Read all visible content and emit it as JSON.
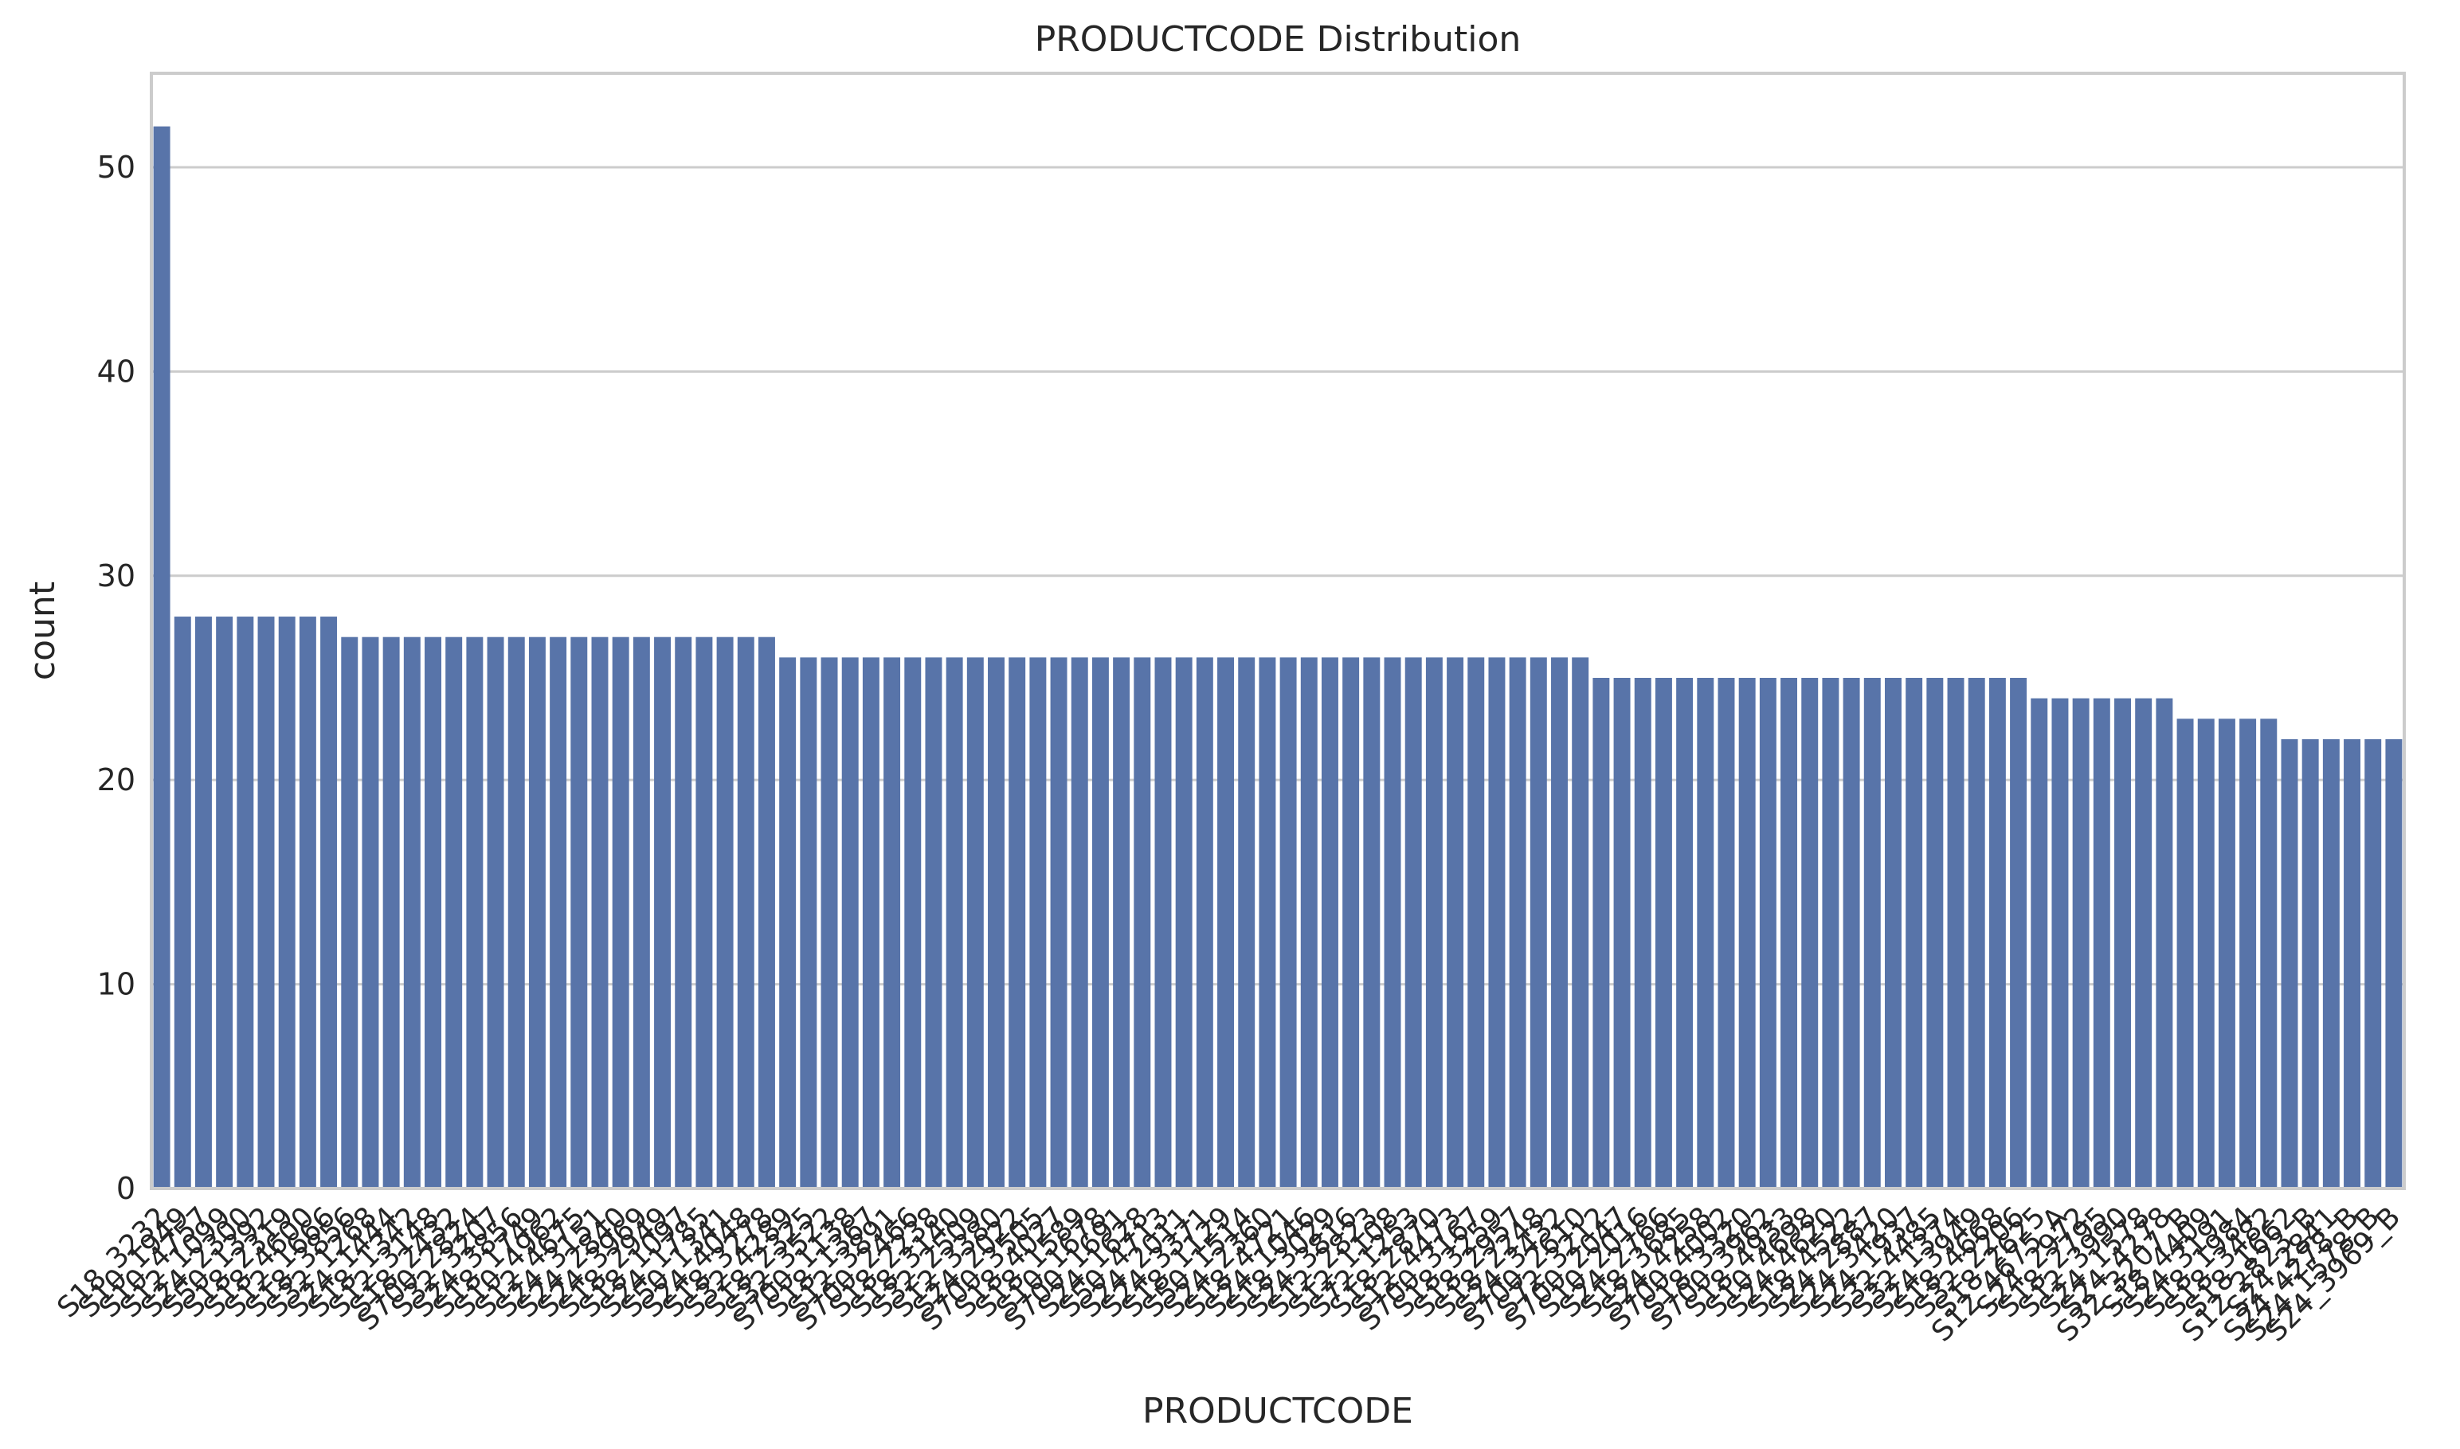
{
  "chart_data": {
    "type": "bar",
    "title": "PRODUCTCODE Distribution",
    "xlabel": "PRODUCTCODE",
    "ylabel": "count",
    "ylim": [
      0,
      54.6
    ],
    "yticks": [
      0,
      10,
      20,
      30,
      40,
      50
    ],
    "grid": true,
    "bar_color": "#5874a9",
    "grid_color": "#cccccc",
    "categories": [
      "S18_3232",
      "S10_1949",
      "S10_4757",
      "S12_1099",
      "S24_2300",
      "S50_1392",
      "S18_2319",
      "S18_4600",
      "S12_1666",
      "S18_3856",
      "S32_1268",
      "S24_1444",
      "S18_1342",
      "S12_3148",
      "S18_2432",
      "S700_2824",
      "S32_3207",
      "S24_3856",
      "S18_1749",
      "S10_4962",
      "S12_4675",
      "S24_3151",
      "S24_2840",
      "S24_3969",
      "S18_2949",
      "S18_1097",
      "S24_1785",
      "S50_1341",
      "S24_4048",
      "S18_3278",
      "S32_4289",
      "S18_2325",
      "S32_3522",
      "S700_1138",
      "S18_1367",
      "S12_3891",
      "S700_2466",
      "S18_2238",
      "S18_3140",
      "S32_2509",
      "S12_3380",
      "S24_2022",
      "S700_3505",
      "S18_4027",
      "S18_1589",
      "S10_1678",
      "S700_1691",
      "S24_1628",
      "S50_4713",
      "S24_2011",
      "S24_3371",
      "S18_1129",
      "S50_1514",
      "S24_2360",
      "S18_4721",
      "S24_1046",
      "S18_3029",
      "S24_3816",
      "S12_2823",
      "S12_1108",
      "S72_1253",
      "S18_2870",
      "S12_4473",
      "S700_3167",
      "S18_3259",
      "S18_2957",
      "S18_2248",
      "S24_3432",
      "S700_2610",
      "S72_3212",
      "S700_2047",
      "S10_2016",
      "S24_2766",
      "S18_3685",
      "S24_4258",
      "S700_4002",
      "S18_3320",
      "S700_3962",
      "S18_4933",
      "S10_4698",
      "S24_4620",
      "S18_4522",
      "S24_2887",
      "S24_3420",
      "S24_1937",
      "S32_4485",
      "S32_1374",
      "S24_3949",
      "S18_4668",
      "S32_2206",
      "S18_2625",
      "S12_4675_A",
      "S24_2972",
      "S18_2795",
      "S12_3990",
      "S24_1578",
      "S24_4278",
      "S32_3207_B",
      "S18_4409",
      "S24_3191",
      "S18_1984",
      "S18_3482",
      "S18_1662",
      "S12_2823_B",
      "S24_2841",
      "S24_4278_B",
      "S24_1578_B",
      "S24_3969_B"
    ],
    "values": [
      52,
      28,
      28,
      28,
      28,
      28,
      28,
      28,
      28,
      27,
      27,
      27,
      27,
      27,
      27,
      27,
      27,
      27,
      27,
      27,
      27,
      27,
      27,
      27,
      27,
      27,
      27,
      27,
      27,
      27,
      26,
      26,
      26,
      26,
      26,
      26,
      26,
      26,
      26,
      26,
      26,
      26,
      26,
      26,
      26,
      26,
      26,
      26,
      26,
      26,
      26,
      26,
      26,
      26,
      26,
      26,
      26,
      26,
      26,
      26,
      26,
      26,
      26,
      26,
      26,
      26,
      26,
      26,
      26,
      25,
      25,
      25,
      25,
      25,
      25,
      25,
      25,
      25,
      25,
      25,
      25,
      25,
      25,
      25,
      25,
      25,
      25,
      25,
      25,
      25,
      24,
      24,
      24,
      24,
      24,
      24,
      24,
      23,
      23,
      23,
      23,
      23,
      22,
      22,
      22,
      22,
      22,
      22
    ]
  }
}
